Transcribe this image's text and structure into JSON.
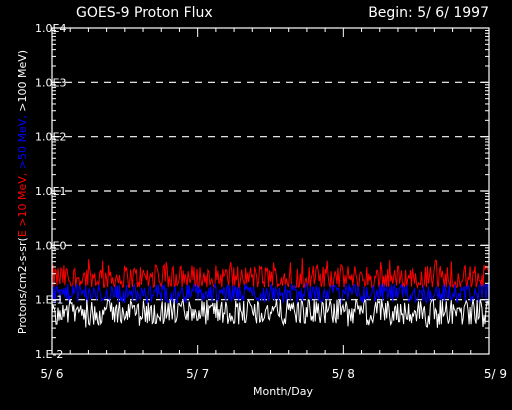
{
  "chart_data": {
    "type": "line",
    "title": "GOES-9 Proton Flux",
    "begin_label": "Begin: 5/ 6/ 1997",
    "xlabel": "Month/Day",
    "ylabel_prefix": "Protons/cm2-s-sr(",
    "ylabel_parts": [
      {
        "text": "E >10 MeV, ",
        "color": "#ff0000"
      },
      {
        "text": ">50 MeV, ",
        "color": "#0000ff"
      },
      {
        "text": ">100 MeV",
        "color": "#ffffff"
      }
    ],
    "ylabel_suffix": ")",
    "y_scale": "log",
    "ylim": [
      0.01,
      10000
    ],
    "yticks": [
      0.01,
      0.1,
      1,
      10,
      100,
      1000,
      10000
    ],
    "ytick_labels": [
      "1.E-2",
      "1.E-1",
      "1.0E0",
      "1.0E1",
      "1.0E2",
      "1.0E3",
      "1.0E4"
    ],
    "xlim": [
      "1997-05-06",
      "1997-05-09"
    ],
    "xticks": [
      "1997-05-06",
      "1997-05-07",
      "1997-05-08",
      "1997-05-09"
    ],
    "xtick_labels": [
      "5/ 6",
      "5/ 7",
      "5/ 8",
      "5/ 9"
    ],
    "grid": "dashed horizontal lines at each decade",
    "background": "#000000",
    "series": [
      {
        "name": ">10 MeV",
        "color": "#ff0000",
        "baseline": 0.25,
        "range": [
          0.17,
          0.6
        ]
      },
      {
        "name": ">50 MeV",
        "color": "#0000ff",
        "baseline": 0.13,
        "range": [
          0.08,
          0.2
        ]
      },
      {
        "name": ">100 MeV",
        "color": "#ffffff",
        "baseline": 0.06,
        "range": [
          0.03,
          0.1
        ]
      }
    ]
  }
}
